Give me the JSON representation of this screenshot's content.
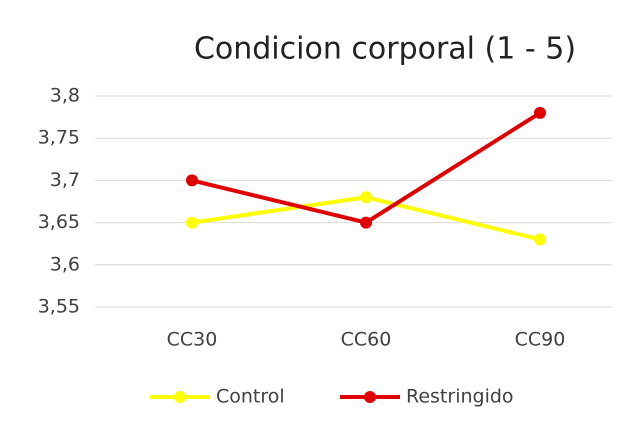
{
  "chart_data": {
    "type": "line",
    "title": "Condicion corporal (1 - 5)",
    "categories": [
      "CC30",
      "CC60",
      "CC90"
    ],
    "series": [
      {
        "name": "Control",
        "color": "#ffff00",
        "values": [
          3.65,
          3.68,
          3.63
        ]
      },
      {
        "name": "Restringido",
        "color": "#e00000",
        "values": [
          3.7,
          3.65,
          3.78
        ]
      }
    ],
    "ylim": [
      3.55,
      3.8
    ],
    "yticks": [
      {
        "value": 3.55,
        "label": "3,55"
      },
      {
        "value": 3.6,
        "label": "3,6"
      },
      {
        "value": 3.65,
        "label": "3,65"
      },
      {
        "value": 3.7,
        "label": "3,7"
      },
      {
        "value": 3.75,
        "label": "3,75"
      },
      {
        "value": 3.8,
        "label": "3,8"
      }
    ],
    "grid": true,
    "legend": "bottom"
  }
}
